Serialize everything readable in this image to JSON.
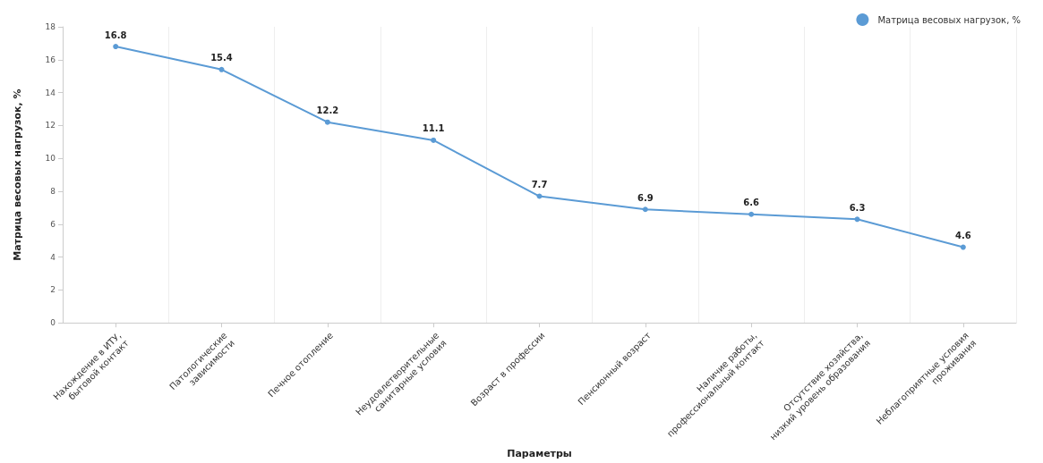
{
  "chart_data": {
    "type": "line",
    "xlabel": "Параметры",
    "ylabel": "Матрица весовых нагрузок, %",
    "categories": [
      "Нахождение в ИТУ,\nбытовой контакт",
      "Патологические\nзависимости",
      "Печное отопление",
      "Неудовлетворительные\nсанитарные условия",
      "Возраст в профессии",
      "Пенсионный возраст",
      "Наличие работы,\nпрофессиональный контакт",
      "Отсутствие хозяйства,\nнизкий уровень образования",
      "Неблагоприятные условия\nпроживания"
    ],
    "series": [
      {
        "name": "Матрица весовых нагрузок, %",
        "color": "#5b9bd5",
        "values": [
          16.8,
          15.4,
          12.2,
          11.1,
          7.7,
          6.9,
          6.6,
          6.3,
          4.6
        ]
      }
    ],
    "ylim": [
      0,
      18
    ],
    "yticks": [
      0,
      2,
      4,
      6,
      8,
      10,
      12,
      14,
      16,
      18
    ],
    "grid": "x",
    "legend": "top right",
    "marker": "circle",
    "line_style": "solid",
    "data_labels": true
  }
}
